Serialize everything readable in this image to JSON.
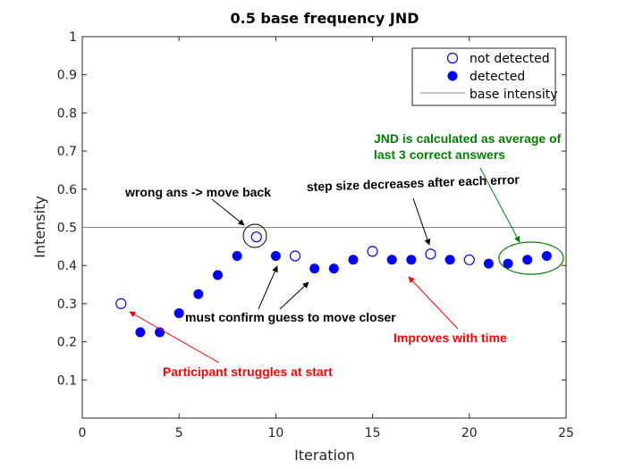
{
  "chart_data": {
    "type": "scatter",
    "title": "0.5 base frequency JND",
    "xlabel": "Iteration",
    "ylabel": "Intensity",
    "xlim": [
      0,
      25
    ],
    "ylim": [
      0,
      1
    ],
    "xticks": [
      0,
      5,
      10,
      15,
      20,
      25
    ],
    "yticks": [
      0.1,
      0.2,
      0.3,
      0.4,
      0.5,
      0.6,
      0.7,
      0.8,
      0.9,
      1
    ],
    "ytick_labels": [
      "0.1",
      "0.2",
      "0.3",
      "0.4",
      "0.5",
      "0.6",
      "0.7",
      "0.8",
      "0.9",
      "1"
    ],
    "base_intensity": 0.5,
    "grid": false,
    "legend_placement": "top-right",
    "series": [
      {
        "name": "not detected",
        "marker": "open-circle",
        "color": "#0000ff",
        "points": [
          {
            "x": 2,
            "y": 0.3
          },
          {
            "x": 9,
            "y": 0.475
          },
          {
            "x": 11,
            "y": 0.425
          },
          {
            "x": 15,
            "y": 0.437
          },
          {
            "x": 18,
            "y": 0.43
          },
          {
            "x": 20,
            "y": 0.415
          }
        ]
      },
      {
        "name": "detected",
        "marker": "filled-circle",
        "color": "#0000ff",
        "points": [
          {
            "x": 3,
            "y": 0.225
          },
          {
            "x": 4,
            "y": 0.225
          },
          {
            "x": 5,
            "y": 0.275
          },
          {
            "x": 6,
            "y": 0.325
          },
          {
            "x": 7,
            "y": 0.375
          },
          {
            "x": 8,
            "y": 0.425
          },
          {
            "x": 10,
            "y": 0.425
          },
          {
            "x": 12,
            "y": 0.392
          },
          {
            "x": 13,
            "y": 0.392
          },
          {
            "x": 14,
            "y": 0.415
          },
          {
            "x": 16,
            "y": 0.415
          },
          {
            "x": 17,
            "y": 0.415
          },
          {
            "x": 19,
            "y": 0.415
          },
          {
            "x": 21,
            "y": 0.405
          },
          {
            "x": 22,
            "y": 0.405
          },
          {
            "x": 23,
            "y": 0.415
          },
          {
            "x": 24,
            "y": 0.425
          }
        ]
      },
      {
        "name": "base intensity",
        "marker": "line",
        "color": "#808080"
      }
    ],
    "annotations": [
      {
        "text": "wrong ans -> move back",
        "color": "#000000"
      },
      {
        "text": "step size decreases after each error",
        "color": "#000000"
      },
      {
        "text": "JND is calculated as average of",
        "color": "#008000"
      },
      {
        "text": "last 3 correct answers",
        "color": "#008000"
      },
      {
        "text": "must confirm guess to move closer",
        "color": "#000000"
      },
      {
        "text": "Improves with time",
        "color": "#ff0000"
      },
      {
        "text": "Participant struggles at start",
        "color": "#ff0000"
      }
    ]
  }
}
